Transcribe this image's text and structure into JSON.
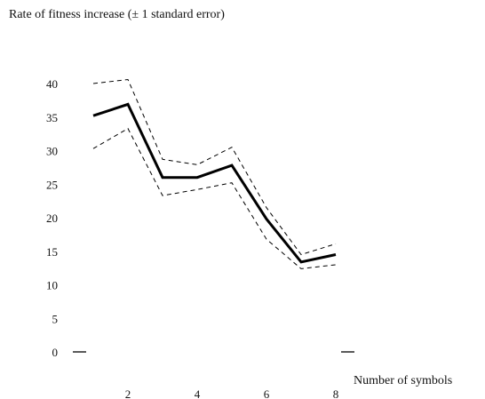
{
  "chart_data": {
    "type": "line",
    "title": "Rate of fitness increase (± 1 standard error)",
    "xlabel": "Number of symbols",
    "ylabel": "",
    "x": [
      1,
      2,
      3,
      4,
      5,
      6,
      7,
      8
    ],
    "x_ticks": [
      2,
      4,
      6,
      8
    ],
    "y_ticks": [
      0,
      5,
      10,
      15,
      20,
      25,
      30,
      35,
      40
    ],
    "xlim": [
      0.5,
      8.5
    ],
    "ylim": [
      0,
      40
    ],
    "grid": false,
    "series": [
      {
        "role": "mean",
        "style": "solid",
        "values": [
          35.2,
          36.9,
          26.0,
          26.0,
          27.8,
          19.8,
          13.4,
          14.5
        ]
      },
      {
        "role": "upper-error",
        "style": "dashed",
        "values": [
          40.0,
          40.6,
          28.7,
          27.9,
          30.5,
          21.5,
          14.5,
          16.1
        ]
      },
      {
        "role": "lower-error",
        "style": "dashed",
        "values": [
          30.3,
          33.3,
          23.3,
          24.2,
          25.2,
          16.8,
          12.4,
          13.0
        ]
      }
    ],
    "colors": {
      "line": "#000000",
      "text": "#111111"
    }
  }
}
